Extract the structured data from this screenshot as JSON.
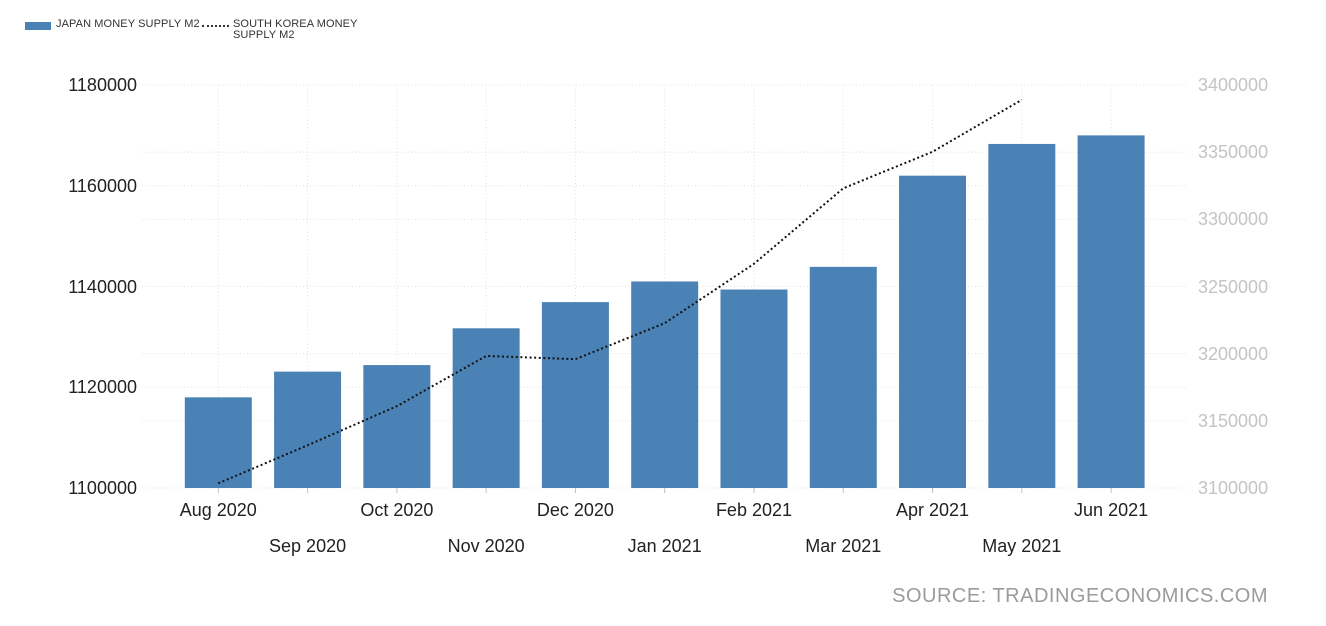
{
  "legend": {
    "items": [
      {
        "label": "JAPAN MONEY SUPPLY M2",
        "swatch": "bar",
        "color": "#4a82b5"
      },
      {
        "label": "SOUTH KOREA MONEY SUPPLY M2",
        "swatch": "dotted-line",
        "color": "#333333"
      }
    ]
  },
  "source": {
    "text": "SOURCE: TRADINGECONOMICS.COM"
  },
  "colors": {
    "bar": "#4a82b5",
    "line": "#111111",
    "grid": "#e1e1e1",
    "axis_tick": "#c0c0c0",
    "axis_left_text": "#222222",
    "axis_right_text": "#c4c4c4",
    "x_text": "#222222",
    "source_text": "#9b9b9b"
  },
  "chart_data": {
    "type": "bar",
    "subtype": "bar-plus-dotted-line, dual y-axis",
    "categories": [
      "Aug 2020",
      "Sep 2020",
      "Oct 2020",
      "Nov 2020",
      "Dec 2020",
      "Jan 2021",
      "Feb 2021",
      "Mar 2021",
      "Apr 2021",
      "May 2021",
      "Jun 2021"
    ],
    "series": [
      {
        "name": "JAPAN MONEY SUPPLY M2",
        "type": "bar",
        "axis": "left",
        "color": "#4a82b5",
        "values": [
          1118000,
          1123100,
          1124400,
          1131700,
          1136900,
          1141000,
          1139400,
          1143900,
          1162000,
          1168300,
          1170000
        ]
      },
      {
        "name": "SOUTH KOREA MONEY SUPPLY M2",
        "type": "dotted-line",
        "axis": "right",
        "color": "#111111",
        "values": [
          3103500,
          3131800,
          3160900,
          3198300,
          3195900,
          3222700,
          3266900,
          3323100,
          3350300,
          3389000,
          null
        ]
      }
    ],
    "axes": {
      "left": {
        "min": 1100000,
        "max": 1180000,
        "ticks": [
          1180000,
          1160000,
          1140000,
          1120000,
          1100000
        ]
      },
      "right": {
        "min": 3100000,
        "max": 3400000,
        "ticks": [
          3400000,
          3350000,
          3300000,
          3250000,
          3200000,
          3150000,
          3100000
        ]
      }
    },
    "grid": true,
    "legend_position": "top-left",
    "title": "",
    "xlabel": "",
    "ylabel": ""
  }
}
